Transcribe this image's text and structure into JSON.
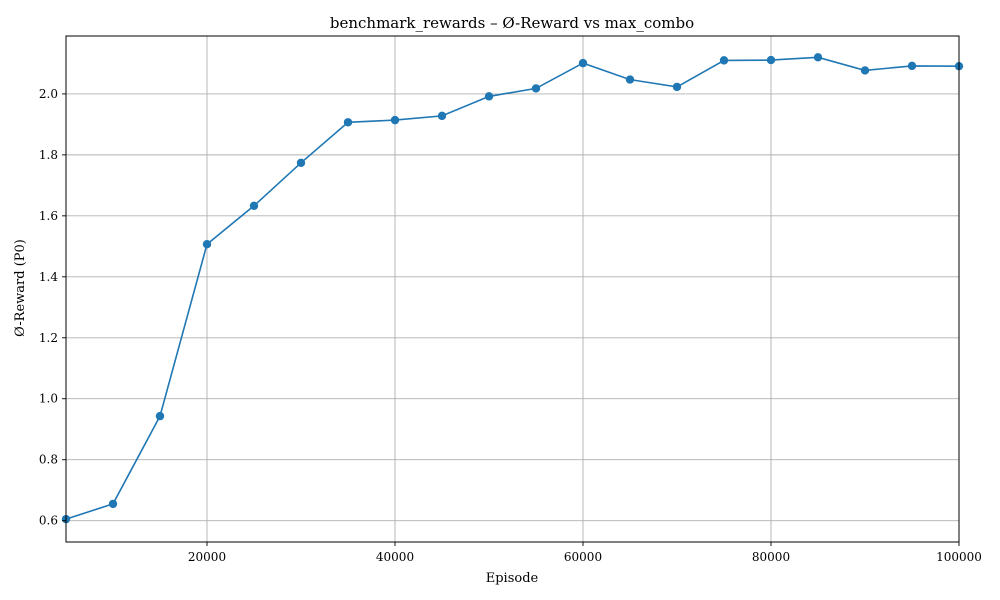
{
  "chart_data": {
    "type": "line",
    "title": "benchmark_rewards – Ø-Reward vs max_combo",
    "xlabel": "Episode",
    "ylabel": "Ø-Reward (P0)",
    "xlim": [
      5000,
      100000
    ],
    "ylim": [
      0.53,
      2.19
    ],
    "grid": true,
    "x_ticks": [
      20000,
      40000,
      60000,
      80000,
      100000
    ],
    "y_ticks": [
      0.6,
      0.8,
      1.0,
      1.2,
      1.4,
      1.6,
      1.8,
      2.0
    ],
    "series": [
      {
        "marker": "circle",
        "color": "#1f77b4",
        "x": [
          5000,
          10000,
          15000,
          20000,
          25000,
          30000,
          35000,
          40000,
          45000,
          50000,
          55000,
          60000,
          65000,
          70000,
          75000,
          80000,
          85000,
          90000,
          95000,
          100000
        ],
        "values": [
          0.605,
          0.655,
          0.943,
          1.507,
          1.633,
          1.774,
          1.907,
          1.914,
          1.928,
          1.992,
          2.018,
          2.101,
          2.047,
          2.023,
          2.11,
          2.111,
          2.12,
          2.077,
          2.092,
          2.091
        ]
      }
    ]
  },
  "colors": {
    "series": "#1f77b4",
    "grid": "#b0b0b0",
    "axes": "#000000"
  }
}
